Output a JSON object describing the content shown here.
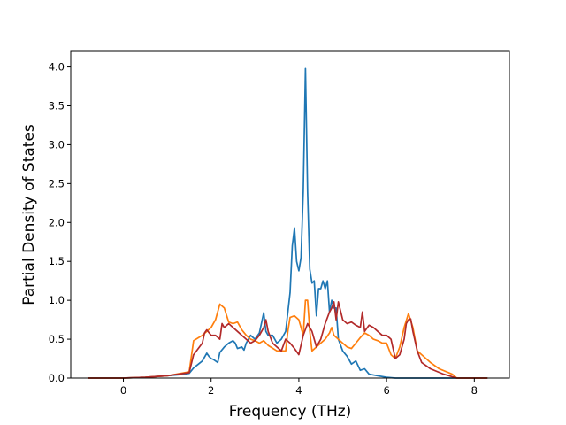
{
  "chart_data": {
    "type": "line",
    "title": "",
    "xlabel": "Frequency (THz)",
    "ylabel": "Partial Density of States",
    "xlim": [
      -1.2,
      8.8
    ],
    "ylim": [
      0.0,
      4.2
    ],
    "xticks": [
      0,
      2,
      4,
      6,
      8
    ],
    "yticks": [
      0.0,
      0.5,
      1.0,
      1.5,
      2.0,
      2.5,
      3.0,
      3.5,
      4.0
    ],
    "xtick_labels": [
      "0",
      "2",
      "4",
      "6",
      "8"
    ],
    "ytick_labels": [
      "0.0",
      "0.5",
      "1.0",
      "1.5",
      "2.0",
      "2.5",
      "3.0",
      "3.5",
      "4.0"
    ],
    "grid": false,
    "legend": false,
    "series": [
      {
        "color": "#1f77b4",
        "x": [
          -0.8,
          0.0,
          0.5,
          1.0,
          1.4,
          1.5,
          1.6,
          1.8,
          1.9,
          1.95,
          2.0,
          2.05,
          2.15,
          2.2,
          2.3,
          2.4,
          2.5,
          2.55,
          2.6,
          2.7,
          2.75,
          2.8,
          2.9,
          3.0,
          3.1,
          3.2,
          3.25,
          3.3,
          3.4,
          3.5,
          3.6,
          3.7,
          3.8,
          3.85,
          3.9,
          3.95,
          4.0,
          4.05,
          4.1,
          4.15,
          4.2,
          4.25,
          4.3,
          4.35,
          4.4,
          4.45,
          4.5,
          4.55,
          4.6,
          4.65,
          4.7,
          4.75,
          4.8,
          4.85,
          4.9,
          5.0,
          5.1,
          5.2,
          5.3,
          5.4,
          5.5,
          5.6,
          5.8,
          6.0,
          6.2,
          6.5,
          7.0,
          7.5,
          8.3
        ],
        "y": [
          0.0,
          0.0,
          0.01,
          0.03,
          0.05,
          0.06,
          0.13,
          0.22,
          0.32,
          0.28,
          0.25,
          0.24,
          0.2,
          0.33,
          0.4,
          0.45,
          0.48,
          0.45,
          0.38,
          0.4,
          0.36,
          0.45,
          0.55,
          0.5,
          0.58,
          0.84,
          0.6,
          0.55,
          0.55,
          0.45,
          0.5,
          0.6,
          1.1,
          1.7,
          1.93,
          1.5,
          1.38,
          1.55,
          2.4,
          3.98,
          2.4,
          1.4,
          1.22,
          1.25,
          0.8,
          1.15,
          1.15,
          1.25,
          1.15,
          1.25,
          0.85,
          1.0,
          0.9,
          0.9,
          0.5,
          0.35,
          0.28,
          0.18,
          0.22,
          0.1,
          0.12,
          0.05,
          0.03,
          0.01,
          0.0,
          0.0,
          0.0,
          0.0,
          0.0
        ]
      },
      {
        "color": "#ff7f0e",
        "x": [
          -0.8,
          0.0,
          0.5,
          1.0,
          1.5,
          1.6,
          1.8,
          1.9,
          2.0,
          2.1,
          2.2,
          2.3,
          2.4,
          2.5,
          2.6,
          2.7,
          2.8,
          2.9,
          3.0,
          3.1,
          3.2,
          3.3,
          3.5,
          3.7,
          3.75,
          3.8,
          3.9,
          4.0,
          4.1,
          4.15,
          4.2,
          4.25,
          4.3,
          4.4,
          4.5,
          4.6,
          4.7,
          4.75,
          4.8,
          4.9,
          5.0,
          5.1,
          5.2,
          5.3,
          5.4,
          5.5,
          5.6,
          5.7,
          5.8,
          5.9,
          6.0,
          6.1,
          6.2,
          6.3,
          6.4,
          6.5,
          6.6,
          6.7,
          6.8,
          7.0,
          7.2,
          7.5,
          7.6,
          8.3
        ],
        "y": [
          0.0,
          0.0,
          0.01,
          0.03,
          0.08,
          0.48,
          0.55,
          0.6,
          0.65,
          0.75,
          0.95,
          0.9,
          0.72,
          0.7,
          0.72,
          0.62,
          0.55,
          0.5,
          0.48,
          0.45,
          0.48,
          0.42,
          0.35,
          0.35,
          0.6,
          0.78,
          0.8,
          0.75,
          0.55,
          1.0,
          1.0,
          0.6,
          0.35,
          0.4,
          0.45,
          0.5,
          0.58,
          0.65,
          0.55,
          0.5,
          0.45,
          0.4,
          0.38,
          0.45,
          0.52,
          0.58,
          0.55,
          0.5,
          0.48,
          0.45,
          0.45,
          0.3,
          0.25,
          0.4,
          0.65,
          0.83,
          0.65,
          0.35,
          0.3,
          0.2,
          0.12,
          0.05,
          0.0,
          0.0
        ]
      },
      {
        "color": "#b22a2a",
        "x": [
          -0.8,
          0.0,
          0.5,
          1.0,
          1.5,
          1.6,
          1.8,
          1.85,
          1.9,
          2.0,
          2.1,
          2.2,
          2.25,
          2.3,
          2.4,
          2.5,
          2.6,
          2.7,
          2.8,
          2.9,
          3.0,
          3.1,
          3.2,
          3.25,
          3.3,
          3.4,
          3.5,
          3.6,
          3.7,
          3.8,
          3.9,
          4.0,
          4.1,
          4.2,
          4.3,
          4.4,
          4.5,
          4.6,
          4.7,
          4.75,
          4.8,
          4.85,
          4.9,
          5.0,
          5.1,
          5.2,
          5.3,
          5.4,
          5.45,
          5.5,
          5.6,
          5.7,
          5.8,
          5.9,
          6.0,
          6.1,
          6.2,
          6.3,
          6.4,
          6.45,
          6.5,
          6.55,
          6.6,
          6.7,
          6.8,
          7.0,
          7.3,
          7.6,
          8.3
        ],
        "y": [
          0.0,
          0.0,
          0.01,
          0.03,
          0.07,
          0.3,
          0.45,
          0.58,
          0.62,
          0.55,
          0.55,
          0.5,
          0.7,
          0.65,
          0.7,
          0.65,
          0.6,
          0.55,
          0.5,
          0.45,
          0.48,
          0.55,
          0.65,
          0.75,
          0.6,
          0.45,
          0.4,
          0.35,
          0.5,
          0.45,
          0.38,
          0.3,
          0.55,
          0.7,
          0.6,
          0.4,
          0.5,
          0.7,
          0.85,
          0.9,
          0.98,
          0.75,
          0.98,
          0.75,
          0.7,
          0.72,
          0.68,
          0.65,
          0.85,
          0.6,
          0.68,
          0.65,
          0.6,
          0.55,
          0.55,
          0.5,
          0.25,
          0.3,
          0.5,
          0.7,
          0.75,
          0.76,
          0.6,
          0.35,
          0.2,
          0.12,
          0.05,
          0.0,
          0.0
        ]
      }
    ]
  }
}
